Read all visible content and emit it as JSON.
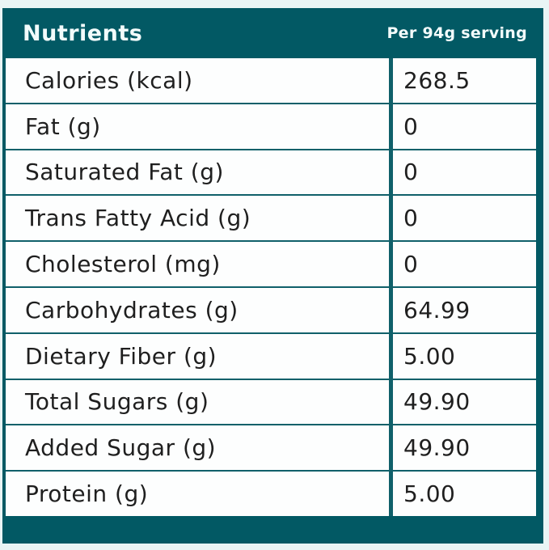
{
  "table": {
    "header": {
      "title": "Nutrients",
      "serving_label": "Per 94g serving"
    },
    "columns": [
      "Nutrients",
      "Per 94g serving"
    ],
    "rows": [
      {
        "label": "Calories (kcal)",
        "value": "268.5"
      },
      {
        "label": "Fat (g)",
        "value": "0"
      },
      {
        "label": "Saturated Fat (g)",
        "value": "0"
      },
      {
        "label": "Trans Fatty Acid (g)",
        "value": "0"
      },
      {
        "label": "Cholesterol (mg)",
        "value": "0"
      },
      {
        "label": "Carbohydrates (g)",
        "value": "64.99"
      },
      {
        "label": "Dietary Fiber (g)",
        "value": "5.00"
      },
      {
        "label": "Total Sugars (g)",
        "value": "49.90"
      },
      {
        "label": "Added Sugar (g)",
        "value": "49.90"
      },
      {
        "label": "Protein (g)",
        "value": "5.00"
      }
    ],
    "colors": {
      "teal": "#025964",
      "divider": "#10606a",
      "row_background": "#fdfefe",
      "text": "#1f1f1f",
      "header_text": "#f2fbfb",
      "page_background": "#e9f5f5"
    }
  }
}
